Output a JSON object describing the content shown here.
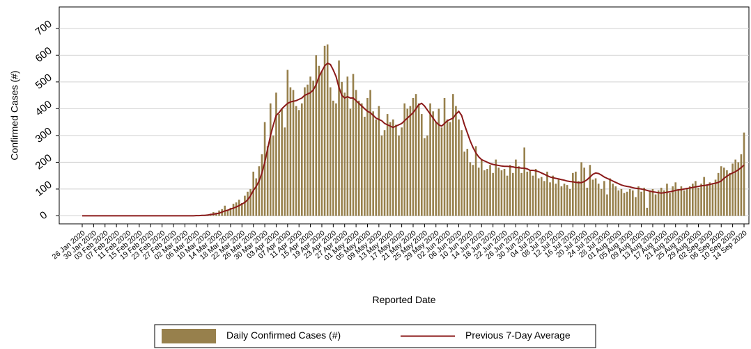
{
  "chart_data": {
    "type": "bar",
    "y_label": "Confirmed Cases (#)",
    "x_label": "Reported Date",
    "ylim": [
      -30,
      780
    ],
    "yticks": [
      0,
      100,
      200,
      300,
      400,
      500,
      600,
      700
    ],
    "grid": true,
    "categories": [
      "26 Jan 2020",
      null,
      null,
      null,
      "30 Jan 2020",
      null,
      null,
      null,
      "03 Feb 2020",
      null,
      null,
      null,
      "07 Feb 2020",
      null,
      null,
      null,
      "11 Feb 2020",
      null,
      null,
      null,
      "15 Feb 2020",
      null,
      null,
      null,
      "19 Feb 2020",
      null,
      null,
      null,
      "23 Feb 2020",
      null,
      null,
      null,
      "27 Feb 2020",
      null,
      null,
      null,
      "02 Mar 2020",
      null,
      null,
      null,
      "06 Mar 2020",
      null,
      null,
      null,
      "10 Mar 2020",
      null,
      null,
      null,
      "14 Mar 2020",
      null,
      null,
      null,
      "18 Mar 2020",
      null,
      null,
      null,
      "22 Mar 2020",
      null,
      null,
      null,
      "26 Mar 2020",
      null,
      null,
      null,
      "30 Mar 2020",
      null,
      null,
      null,
      "03 Apr 2020",
      null,
      null,
      null,
      "07 Apr 2020",
      null,
      null,
      null,
      "11 Apr 2020",
      null,
      null,
      null,
      "15 Apr 2020",
      null,
      null,
      null,
      "19 Apr 2020",
      null,
      null,
      null,
      "23 Apr 2020",
      null,
      null,
      null,
      "27 Apr 2020",
      null,
      null,
      null,
      "01 May 2020",
      null,
      null,
      null,
      "05 May 2020",
      null,
      null,
      null,
      "09 May 2020",
      null,
      null,
      null,
      "13 May 2020",
      null,
      null,
      null,
      "17 May 2020",
      null,
      null,
      null,
      "21 May 2020",
      null,
      null,
      null,
      "25 May 2020",
      null,
      null,
      null,
      "29 May 2020",
      null,
      null,
      null,
      "02 Jun 2020",
      null,
      null,
      null,
      "06 Jun 2020",
      null,
      null,
      null,
      "10 Jun 2020",
      null,
      null,
      null,
      "14 Jun 2020",
      null,
      null,
      null,
      "18 Jun 2020",
      null,
      null,
      null,
      "22 Jun 2020",
      null,
      null,
      null,
      "26 Jun 2020",
      null,
      null,
      null,
      "30 Jun 2020",
      null,
      null,
      null,
      "04 Jul 2020",
      null,
      null,
      null,
      "08 Jul 2020",
      null,
      null,
      null,
      "12 Jul 2020",
      null,
      null,
      null,
      "16 Jul 2020",
      null,
      null,
      null,
      "20 Jul 2020",
      null,
      null,
      null,
      "24 Jul 2020",
      null,
      null,
      null,
      "28 Jul 2020",
      null,
      null,
      null,
      "01 Aug 2020",
      null,
      null,
      null,
      "05 Aug 2020",
      null,
      null,
      null,
      "09 Aug 2020",
      null,
      null,
      null,
      "13 Aug 2020",
      null,
      null,
      null,
      "17 Aug 2020",
      null,
      null,
      null,
      "21 Aug 2020",
      null,
      null,
      null,
      "25 Aug 2020",
      null,
      null,
      null,
      "29 Aug 2020",
      null,
      null,
      null,
      "02 Sep 2020",
      null,
      null,
      null,
      "06 Sep 2020",
      null,
      null,
      null,
      "10 Sep 2020",
      null,
      null,
      null,
      "14 Sep 2020"
    ],
    "series": [
      {
        "name": "Daily Confirmed Cases (#)",
        "type": "bar",
        "color": "#97804c",
        "values": [
          0,
          0,
          0,
          0,
          0,
          0,
          0,
          0,
          0,
          0,
          0,
          0,
          0,
          0,
          0,
          0,
          0,
          0,
          0,
          0,
          0,
          0,
          0,
          0,
          0,
          0,
          0,
          0,
          0,
          0,
          0,
          0,
          0,
          2,
          0,
          0,
          0,
          1,
          0,
          2,
          3,
          0,
          1,
          4,
          2,
          8,
          14,
          12,
          20,
          25,
          38,
          22,
          30,
          45,
          50,
          60,
          48,
          75,
          90,
          100,
          165,
          140,
          185,
          230,
          350,
          260,
          420,
          300,
          460,
          380,
          400,
          330,
          545,
          480,
          470,
          410,
          395,
          420,
          480,
          490,
          520,
          505,
          600,
          560,
          540,
          635,
          640,
          480,
          430,
          420,
          580,
          500,
          460,
          520,
          400,
          530,
          470,
          430,
          420,
          370,
          440,
          470,
          390,
          360,
          410,
          300,
          320,
          380,
          350,
          360,
          340,
          300,
          330,
          420,
          400,
          410,
          440,
          455,
          420,
          380,
          290,
          300,
          420,
          390,
          350,
          400,
          330,
          440,
          360,
          350,
          455,
          410,
          360,
          320,
          240,
          250,
          200,
          190,
          260,
          180,
          210,
          170,
          175,
          190,
          160,
          210,
          180,
          170,
          175,
          150,
          190,
          160,
          210,
          185,
          160,
          255,
          165,
          170,
          150,
          175,
          140,
          145,
          130,
          165,
          125,
          150,
          120,
          140,
          110,
          120,
          115,
          100,
          160,
          165,
          130,
          200,
          180,
          105,
          190,
          135,
          140,
          120,
          100,
          130,
          80,
          140,
          120,
          110,
          95,
          100,
          85,
          90,
          100,
          95,
          70,
          110,
          90,
          105,
          30,
          95,
          100,
          80,
          95,
          105,
          95,
          120,
          85,
          110,
          125,
          100,
          110,
          95,
          105,
          110,
          120,
          130,
          105,
          120,
          145,
          115,
          125,
          120,
          135,
          160,
          185,
          180,
          170,
          160,
          195,
          210,
          200,
          230,
          311
        ]
      },
      {
        "name": "Previous 7-Day Average",
        "type": "line",
        "color": "#8b1a1a",
        "values": [
          0,
          0,
          0,
          0,
          0,
          0,
          0,
          0,
          0,
          0,
          0,
          0,
          0,
          0,
          0,
          0,
          0,
          0,
          0,
          0,
          0,
          0,
          0,
          0,
          0,
          0,
          0,
          0,
          0,
          0,
          0,
          0,
          0,
          0,
          0,
          0,
          0,
          0,
          0,
          0,
          1,
          1,
          2,
          2,
          3,
          5,
          6,
          8,
          10,
          14,
          18,
          21,
          25,
          29,
          33,
          38,
          44,
          50,
          60,
          75,
          95,
          110,
          130,
          160,
          200,
          250,
          300,
          340,
          375,
          385,
          400,
          410,
          420,
          425,
          428,
          430,
          435,
          440,
          450,
          455,
          460,
          470,
          490,
          520,
          540,
          560,
          570,
          565,
          545,
          520,
          480,
          450,
          440,
          445,
          440,
          440,
          430,
          420,
          410,
          400,
          390,
          385,
          375,
          365,
          360,
          355,
          345,
          340,
          335,
          330,
          335,
          340,
          345,
          355,
          365,
          375,
          385,
          400,
          415,
          420,
          410,
          395,
          380,
          365,
          350,
          340,
          335,
          345,
          355,
          360,
          365,
          380,
          390,
          375,
          340,
          310,
          280,
          255,
          235,
          220,
          210,
          205,
          200,
          195,
          192,
          190,
          188,
          186,
          185,
          185,
          184,
          183,
          180,
          180,
          178,
          178,
          175,
          170,
          170,
          168,
          165,
          160,
          155,
          150,
          145,
          142,
          140,
          138,
          135,
          133,
          130,
          128,
          127,
          125,
          124,
          124,
          128,
          135,
          145,
          155,
          160,
          158,
          152,
          145,
          140,
          135,
          130,
          125,
          120,
          115,
          112,
          110,
          108,
          105,
          103,
          102,
          100,
          98,
          95,
          92,
          90,
          88,
          86,
          85,
          86,
          88,
          90,
          92,
          95,
          97,
          98,
          100,
          102,
          104,
          106,
          108,
          110,
          112,
          113,
          115,
          117,
          120,
          122,
          125,
          130,
          140,
          148,
          155,
          160,
          165,
          172,
          180,
          190
        ]
      }
    ]
  }
}
